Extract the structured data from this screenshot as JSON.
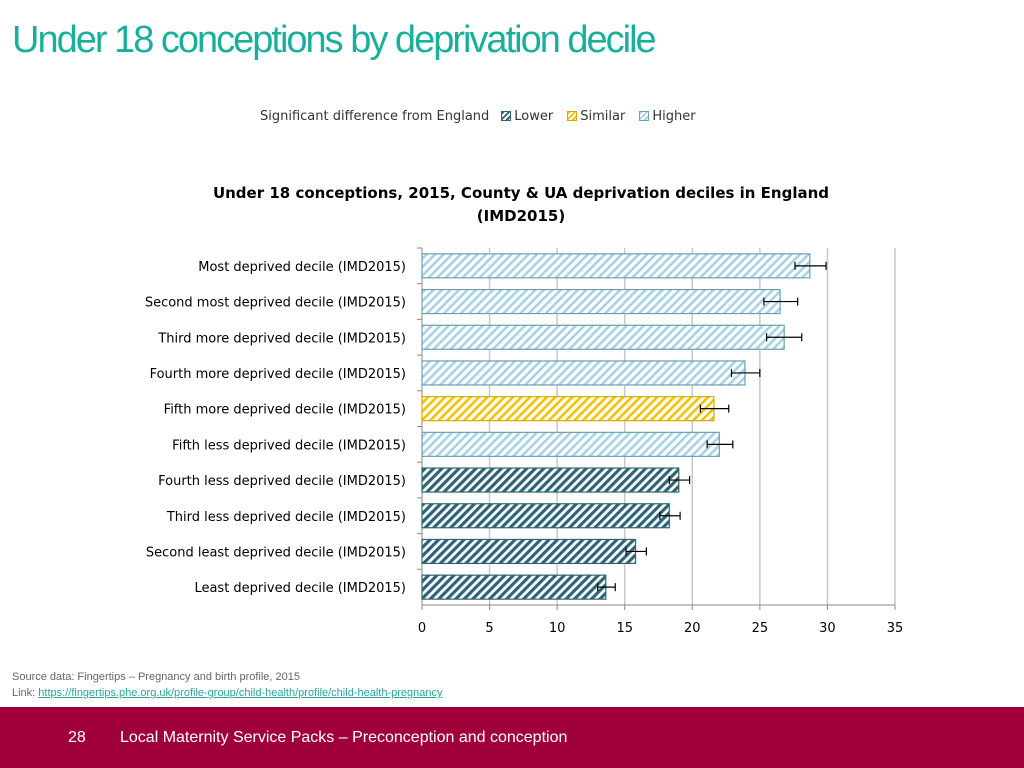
{
  "title": "Under 18 conceptions by deprivation decile",
  "colors": {
    "title": "#1aaf9b",
    "footer": "#a0003a",
    "lower": "#2f6476",
    "similar": "#f2c200",
    "higher": "#a9d2e3",
    "grid": "#c8c8c8"
  },
  "legend": {
    "label": "Significant difference from England",
    "lower": "Lower",
    "similar": "Similar",
    "higher": "Higher"
  },
  "chart_data": {
    "type": "bar",
    "orientation": "horizontal",
    "title_line1": "Under 18 conceptions, 2015, County & UA deprivation deciles in England",
    "title_line2": "(IMD2015)",
    "categories": [
      "Most deprived decile (IMD2015)",
      "Second most deprived decile (IMD2015)",
      "Third more deprived decile (IMD2015)",
      "Fourth more deprived decile (IMD2015)",
      "Fifth more deprived decile (IMD2015)",
      "Fifth less deprived decile (IMD2015)",
      "Fourth less deprived decile (IMD2015)",
      "Third less deprived decile (IMD2015)",
      "Second least deprived decile (IMD2015)",
      "Least deprived decile (IMD2015)"
    ],
    "values": [
      28.7,
      26.5,
      26.8,
      23.9,
      21.6,
      22.0,
      19.0,
      18.3,
      15.8,
      13.6
    ],
    "ci_low": [
      27.6,
      25.3,
      25.5,
      22.9,
      20.6,
      21.1,
      18.3,
      17.6,
      15.1,
      13.0
    ],
    "ci_high": [
      29.9,
      27.8,
      28.1,
      25.0,
      22.7,
      23.0,
      19.8,
      19.1,
      16.6,
      14.3
    ],
    "significance": [
      "higher",
      "higher",
      "higher",
      "higher",
      "similar",
      "higher",
      "lower",
      "lower",
      "lower",
      "lower"
    ],
    "xlim": [
      0,
      35
    ],
    "xticks": [
      0,
      5,
      10,
      15,
      20,
      25,
      30,
      35
    ],
    "grid": true
  },
  "source": {
    "text": "Source data: Fingertips – Pregnancy and birth profile, 2015",
    "link_label": "Link: ",
    "link": "https://fingertips.phe.org.uk/profile-group/child-health/profile/child-health-pregnancy"
  },
  "footer": {
    "page": "28",
    "text": "Local Maternity Service Packs – Preconception and conception"
  }
}
